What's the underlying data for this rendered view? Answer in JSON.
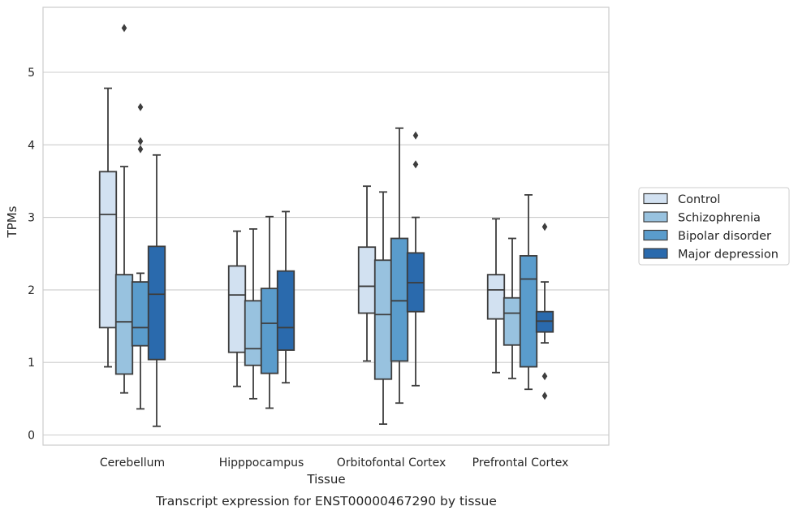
{
  "chart_data": {
    "type": "box",
    "title": "",
    "caption": "Transcript expression for ENST00000467290 by tissue",
    "xlabel": "Tissue",
    "ylabel": "TPMs",
    "ylim": [
      -0.15,
      5.85
    ],
    "yticks": [
      0,
      1,
      2,
      3,
      4,
      5
    ],
    "grid": "horizontal",
    "legend_position": "right",
    "categories": [
      "Cerebellum",
      "Hipppocampus",
      "Orbitofontal Cortex",
      "Prefrontal Cortex"
    ],
    "series": [
      {
        "name": "Control",
        "color": "#d2e1f1",
        "boxes": [
          {
            "whislo": 0.94,
            "q1": 1.48,
            "med": 3.04,
            "q3": 3.63,
            "whishi": 4.78,
            "fliers": []
          },
          {
            "whislo": 0.67,
            "q1": 1.14,
            "med": 1.93,
            "q3": 2.33,
            "whishi": 2.81,
            "fliers": []
          },
          {
            "whislo": 1.02,
            "q1": 1.68,
            "med": 2.05,
            "q3": 2.59,
            "whishi": 3.43,
            "fliers": []
          },
          {
            "whislo": 0.86,
            "q1": 1.6,
            "med": 2.0,
            "q3": 2.21,
            "whishi": 2.98,
            "fliers": []
          }
        ]
      },
      {
        "name": "Schizophrenia",
        "color": "#98c2df",
        "boxes": [
          {
            "whislo": 0.58,
            "q1": 0.84,
            "med": 1.56,
            "q3": 2.21,
            "whishi": 3.7,
            "fliers": [
              5.61
            ]
          },
          {
            "whislo": 0.5,
            "q1": 0.96,
            "med": 1.19,
            "q3": 1.85,
            "whishi": 2.84,
            "fliers": []
          },
          {
            "whislo": 0.15,
            "q1": 0.77,
            "med": 1.66,
            "q3": 2.41,
            "whishi": 3.35,
            "fliers": []
          },
          {
            "whislo": 0.78,
            "q1": 1.24,
            "med": 1.68,
            "q3": 1.89,
            "whishi": 2.71,
            "fliers": []
          }
        ]
      },
      {
        "name": "Bipolar disorder",
        "color": "#5a9ccc",
        "boxes": [
          {
            "whislo": 0.36,
            "q1": 1.23,
            "med": 1.48,
            "q3": 2.11,
            "whishi": 2.23,
            "fliers": [
              4.52,
              4.05,
              3.94
            ]
          },
          {
            "whislo": 0.37,
            "q1": 0.85,
            "med": 1.54,
            "q3": 2.02,
            "whishi": 3.01,
            "fliers": []
          },
          {
            "whislo": 0.44,
            "q1": 1.02,
            "med": 1.85,
            "q3": 2.71,
            "whishi": 4.23,
            "fliers": []
          },
          {
            "whislo": 0.63,
            "q1": 0.94,
            "med": 2.15,
            "q3": 2.47,
            "whishi": 3.31,
            "fliers": []
          }
        ]
      },
      {
        "name": "Major depression",
        "color": "#2a6aad",
        "boxes": [
          {
            "whislo": 0.12,
            "q1": 1.04,
            "med": 1.94,
            "q3": 2.6,
            "whishi": 3.86,
            "fliers": []
          },
          {
            "whislo": 0.72,
            "q1": 1.17,
            "med": 1.48,
            "q3": 2.26,
            "whishi": 3.08,
            "fliers": []
          },
          {
            "whislo": 0.68,
            "q1": 1.7,
            "med": 2.1,
            "q3": 2.51,
            "whishi": 3.0,
            "fliers": [
              4.13,
              3.73
            ]
          },
          {
            "whislo": 1.27,
            "q1": 1.42,
            "med": 1.57,
            "q3": 1.7,
            "whishi": 2.11,
            "fliers": [
              2.87,
              0.81,
              0.54
            ]
          }
        ]
      }
    ]
  }
}
